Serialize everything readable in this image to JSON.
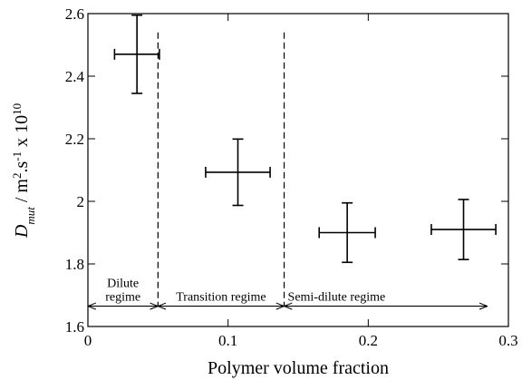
{
  "chart_data": {
    "type": "errorbar-scatter",
    "xlabel": "Polymer volume fraction",
    "ylabel": [
      {
        "text": "D",
        "style": "italic"
      },
      {
        "text": "mut",
        "style": "italic-sub"
      },
      {
        "text": " / m",
        "style": "normal"
      },
      {
        "text": "2",
        "style": "sup"
      },
      {
        "text": ".s",
        "style": "normal"
      },
      {
        "text": "-1",
        "style": "sup"
      },
      {
        "text": " x 10",
        "style": "normal"
      },
      {
        "text": "10",
        "style": "sup"
      }
    ],
    "xlim": [
      0,
      0.3
    ],
    "xticks": [
      0,
      0.1,
      0.2,
      0.3
    ],
    "ylim": [
      1.6,
      2.6
    ],
    "yticks": [
      1.6,
      1.8,
      2,
      2.2,
      2.4,
      2.6
    ],
    "x": [
      0.035,
      0.107,
      0.185,
      0.268
    ],
    "values": [
      2.47,
      2.093,
      1.9,
      1.91
    ],
    "xerr": [
      0.016,
      0.023,
      0.02,
      0.023
    ],
    "yerr": [
      0.125,
      0.106,
      0.095,
      0.096
    ],
    "color": "#000000",
    "boundaries": [
      {
        "x": 0.05,
        "top": 2.54
      },
      {
        "x": 0.14,
        "top": 2.54
      }
    ],
    "regime_arrow_y": 1.665,
    "regimes": [
      {
        "label": [
          "Dilute",
          "regime"
        ],
        "start": 0,
        "end": 0.05
      },
      {
        "label": [
          "Transition regime"
        ],
        "start": 0.05,
        "end": 0.14
      },
      {
        "label": [
          "Semi-dilute regime"
        ],
        "start": 0.14,
        "end": 0.285
      }
    ]
  }
}
